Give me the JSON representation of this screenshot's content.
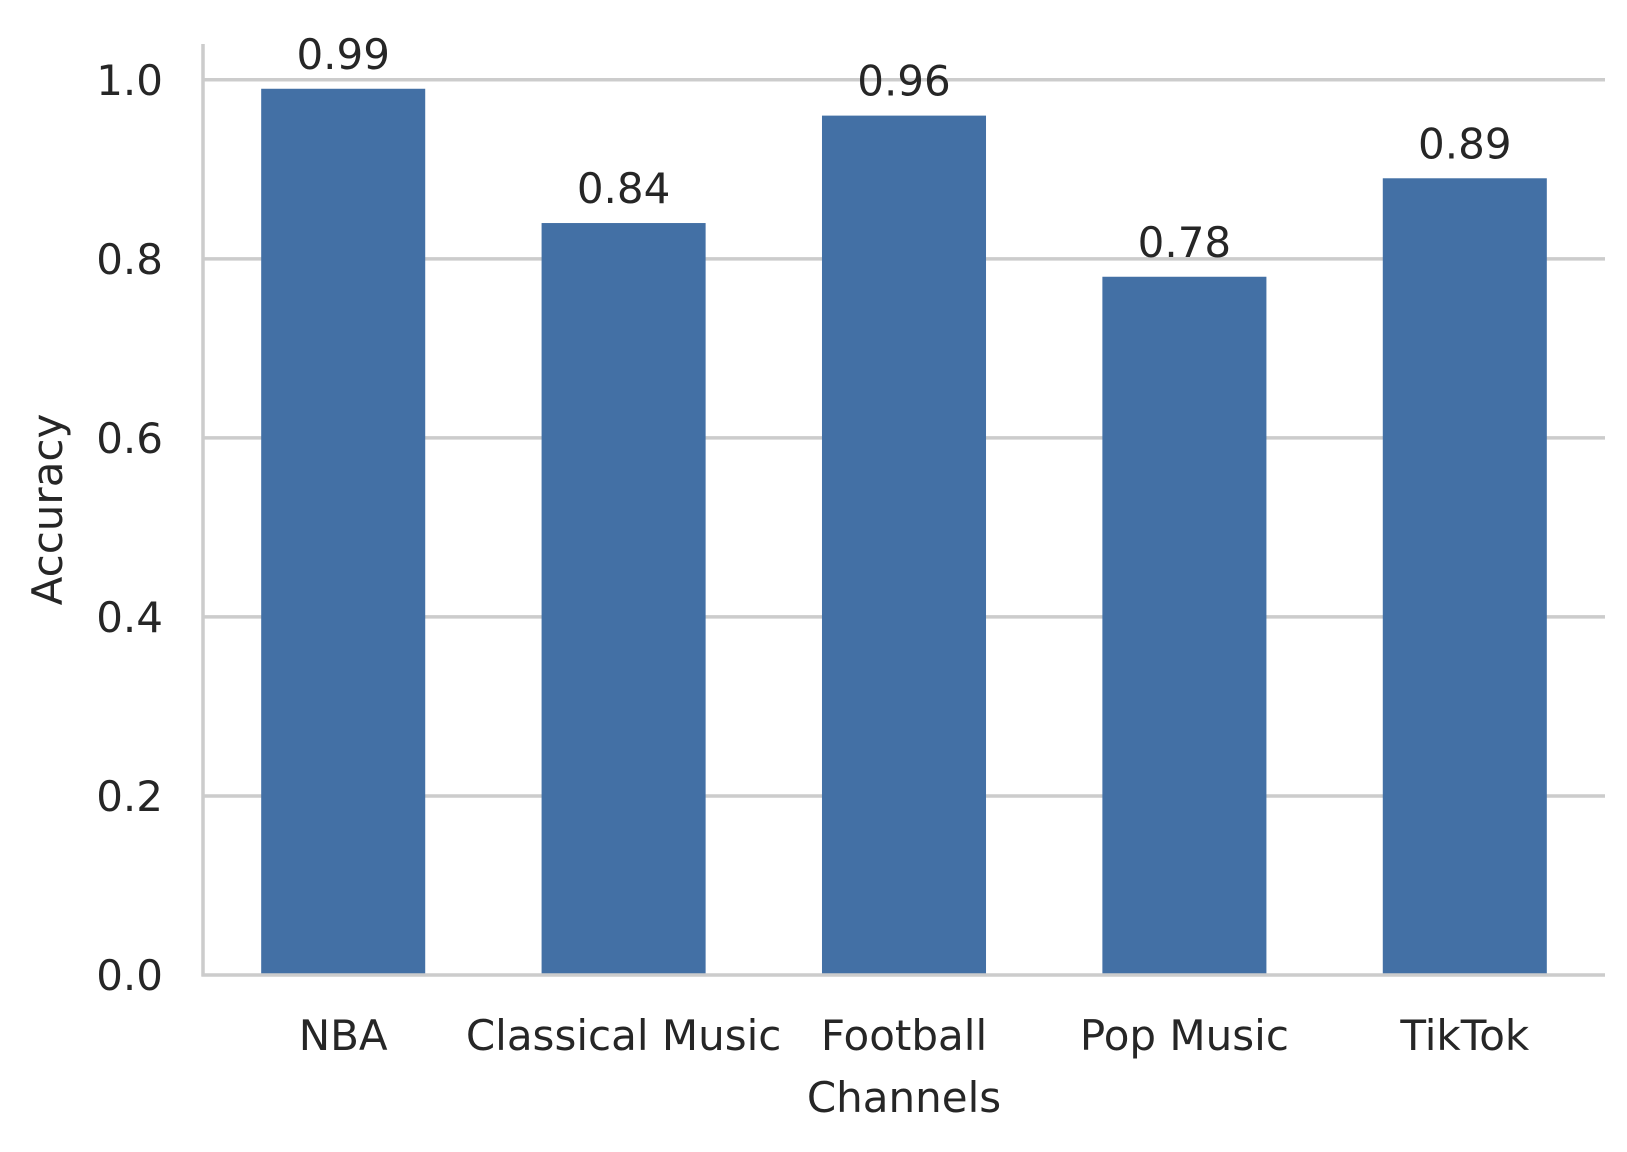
{
  "chart_data": {
    "type": "bar",
    "title": "",
    "xlabel": "Channels",
    "ylabel": "Accuracy",
    "categories": [
      "NBA",
      "Classical Music",
      "Football",
      "Pop Music",
      "TikTok"
    ],
    "values": [
      0.99,
      0.84,
      0.96,
      0.78,
      0.89
    ],
    "value_labels": [
      "0.99",
      "0.84",
      "0.96",
      "0.78",
      "0.89"
    ],
    "ylim": [
      0,
      1.04
    ],
    "yticks": [
      0.0,
      0.2,
      0.4,
      0.6,
      0.8,
      1.0
    ],
    "ytick_labels": [
      "0.0",
      "0.2",
      "0.4",
      "0.6",
      "0.8",
      "1.0"
    ],
    "grid": "horizontal",
    "bar_color": "#4370a5",
    "grid_color": "#cccccc",
    "spine_color": "#cccccc",
    "text_color": "#262626"
  }
}
